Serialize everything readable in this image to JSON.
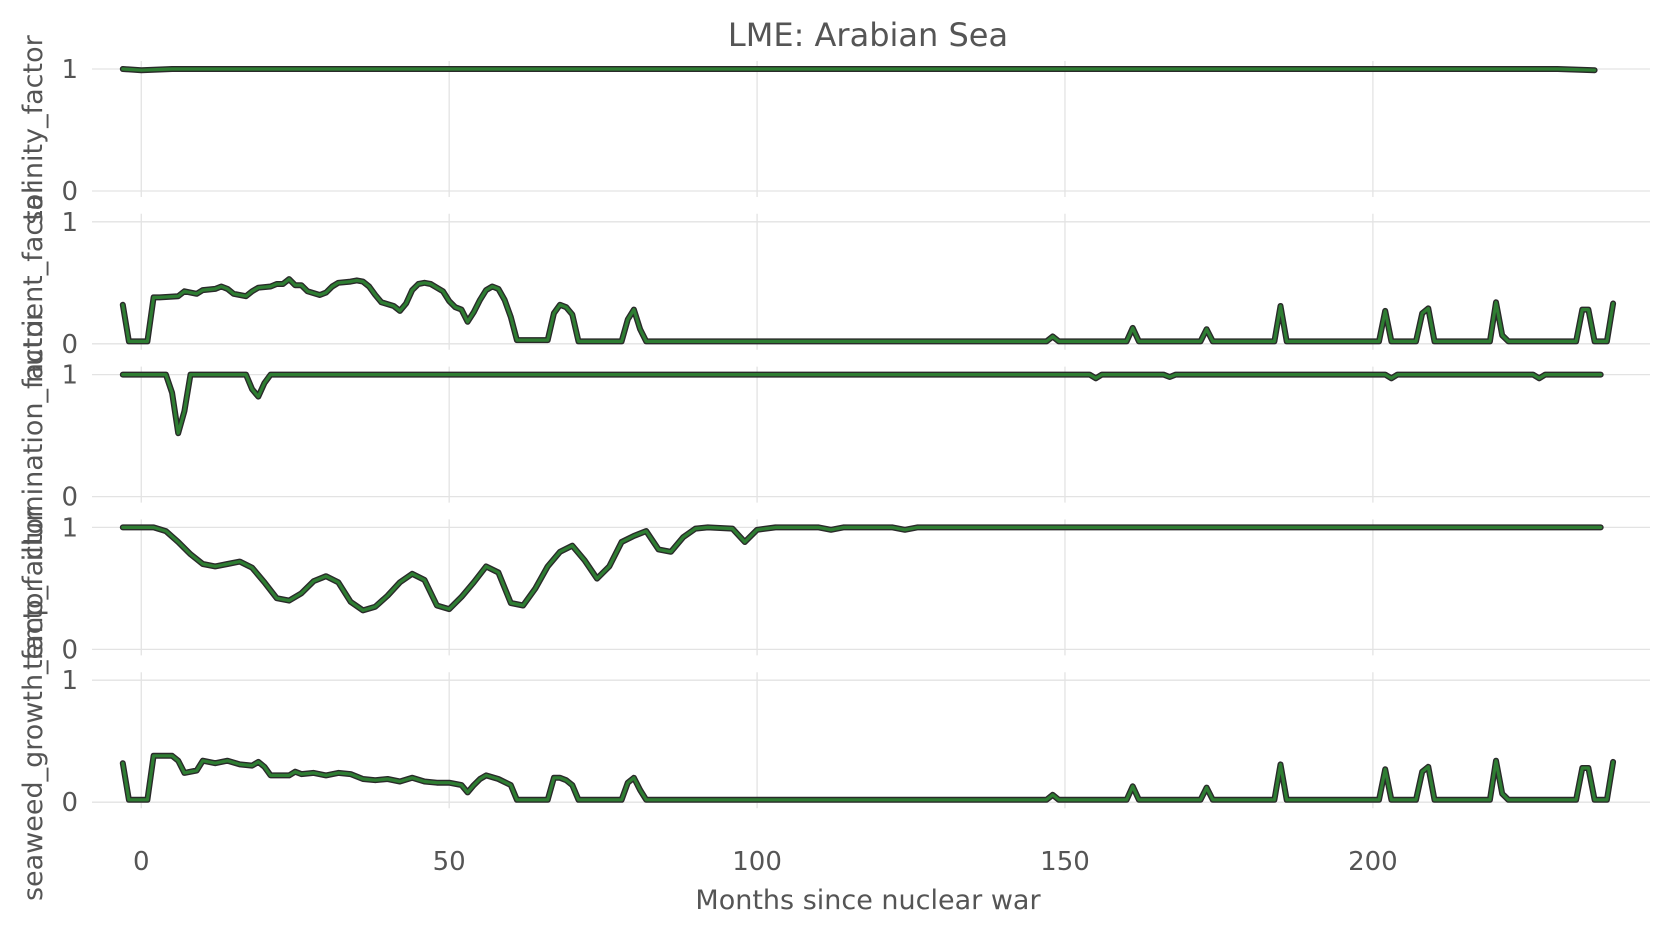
{
  "chart_data": {
    "type": "line",
    "title": "LME: Arabian Sea",
    "xlabel": "Months since nuclear war",
    "xlim": [
      -8,
      245
    ],
    "x_ticks": [
      0,
      50,
      100,
      150,
      200
    ],
    "y_ticks": [
      0,
      1
    ],
    "line_color": "#2e7d32",
    "outline_color": "#2a2a2a",
    "grid": true,
    "panels": [
      {
        "ylabel": "salinity_factor",
        "ylim": [
          0,
          1
        ],
        "points": [
          [
            -3,
            1.0
          ],
          [
            0,
            0.99
          ],
          [
            5,
            1.0
          ],
          [
            230,
            1.0
          ],
          [
            236,
            0.99
          ]
        ]
      },
      {
        "ylabel": "nutrient_factor",
        "ylim": [
          0,
          1
        ],
        "points": [
          [
            -3,
            0.32
          ],
          [
            -2,
            0.02
          ],
          [
            1,
            0.02
          ],
          [
            2,
            0.38
          ],
          [
            3,
            0.38
          ],
          [
            6,
            0.39
          ],
          [
            7,
            0.43
          ],
          [
            9,
            0.41
          ],
          [
            10,
            0.44
          ],
          [
            12,
            0.45
          ],
          [
            13,
            0.47
          ],
          [
            14,
            0.45
          ],
          [
            15,
            0.41
          ],
          [
            17,
            0.39
          ],
          [
            18,
            0.43
          ],
          [
            19,
            0.46
          ],
          [
            21,
            0.47
          ],
          [
            22,
            0.49
          ],
          [
            23,
            0.49
          ],
          [
            24,
            0.53
          ],
          [
            25,
            0.48
          ],
          [
            26,
            0.48
          ],
          [
            27,
            0.43
          ],
          [
            29,
            0.4
          ],
          [
            30,
            0.42
          ],
          [
            31,
            0.47
          ],
          [
            32,
            0.5
          ],
          [
            34,
            0.51
          ],
          [
            35,
            0.52
          ],
          [
            36,
            0.51
          ],
          [
            37,
            0.47
          ],
          [
            38,
            0.4
          ],
          [
            39,
            0.34
          ],
          [
            41,
            0.31
          ],
          [
            42,
            0.27
          ],
          [
            43,
            0.33
          ],
          [
            44,
            0.44
          ],
          [
            45,
            0.49
          ],
          [
            46,
            0.5
          ],
          [
            47,
            0.49
          ],
          [
            48,
            0.46
          ],
          [
            49,
            0.43
          ],
          [
            50,
            0.35
          ],
          [
            51,
            0.3
          ],
          [
            52,
            0.28
          ],
          [
            53,
            0.18
          ],
          [
            54,
            0.26
          ],
          [
            55,
            0.36
          ],
          [
            56,
            0.44
          ],
          [
            57,
            0.47
          ],
          [
            58,
            0.45
          ],
          [
            59,
            0.36
          ],
          [
            60,
            0.22
          ],
          [
            61,
            0.03
          ],
          [
            66,
            0.03
          ],
          [
            67,
            0.25
          ],
          [
            68,
            0.32
          ],
          [
            69,
            0.3
          ],
          [
            70,
            0.24
          ],
          [
            71,
            0.02
          ],
          [
            78,
            0.02
          ],
          [
            79,
            0.2
          ],
          [
            80,
            0.28
          ],
          [
            81,
            0.12
          ],
          [
            82,
            0.02
          ],
          [
            147,
            0.02
          ],
          [
            148,
            0.06
          ],
          [
            149,
            0.02
          ],
          [
            160,
            0.02
          ],
          [
            161,
            0.13
          ],
          [
            162,
            0.02
          ],
          [
            172,
            0.02
          ],
          [
            173,
            0.12
          ],
          [
            174,
            0.02
          ],
          [
            184,
            0.02
          ],
          [
            185,
            0.31
          ],
          [
            186,
            0.02
          ],
          [
            201,
            0.02
          ],
          [
            202,
            0.27
          ],
          [
            203,
            0.02
          ],
          [
            207,
            0.02
          ],
          [
            208,
            0.25
          ],
          [
            209,
            0.29
          ],
          [
            210,
            0.02
          ],
          [
            219,
            0.02
          ],
          [
            220,
            0.34
          ],
          [
            221,
            0.07
          ],
          [
            222,
            0.02
          ],
          [
            233,
            0.02
          ],
          [
            234,
            0.28
          ],
          [
            235,
            0.28
          ],
          [
            236,
            0.02
          ],
          [
            238,
            0.02
          ],
          [
            239,
            0.33
          ]
        ]
      },
      {
        "ylabel": "illumination_factor",
        "ylim": [
          0,
          1
        ],
        "points": [
          [
            -3,
            1.0
          ],
          [
            4,
            1.0
          ],
          [
            5,
            0.85
          ],
          [
            6,
            0.52
          ],
          [
            7,
            0.7
          ],
          [
            8,
            1.0
          ],
          [
            17,
            1.0
          ],
          [
            18,
            0.88
          ],
          [
            19,
            0.82
          ],
          [
            20,
            0.93
          ],
          [
            21,
            1.0
          ],
          [
            154,
            1.0
          ],
          [
            155,
            0.97
          ],
          [
            156,
            1.0
          ],
          [
            166,
            1.0
          ],
          [
            167,
            0.98
          ],
          [
            168,
            1.0
          ],
          [
            202,
            1.0
          ],
          [
            203,
            0.97
          ],
          [
            204,
            1.0
          ],
          [
            226,
            1.0
          ],
          [
            227,
            0.97
          ],
          [
            228,
            1.0
          ],
          [
            237,
            1.0
          ]
        ]
      },
      {
        "ylabel": "temp_factor",
        "ylim": [
          0,
          1
        ],
        "points": [
          [
            -3,
            1.0
          ],
          [
            2,
            1.0
          ],
          [
            4,
            0.97
          ],
          [
            6,
            0.88
          ],
          [
            8,
            0.78
          ],
          [
            10,
            0.7
          ],
          [
            12,
            0.68
          ],
          [
            14,
            0.7
          ],
          [
            16,
            0.72
          ],
          [
            18,
            0.67
          ],
          [
            20,
            0.55
          ],
          [
            22,
            0.42
          ],
          [
            24,
            0.4
          ],
          [
            26,
            0.46
          ],
          [
            28,
            0.56
          ],
          [
            30,
            0.6
          ],
          [
            32,
            0.55
          ],
          [
            34,
            0.39
          ],
          [
            36,
            0.32
          ],
          [
            38,
            0.35
          ],
          [
            40,
            0.44
          ],
          [
            42,
            0.55
          ],
          [
            44,
            0.62
          ],
          [
            46,
            0.57
          ],
          [
            48,
            0.36
          ],
          [
            50,
            0.33
          ],
          [
            52,
            0.43
          ],
          [
            54,
            0.55
          ],
          [
            56,
            0.68
          ],
          [
            58,
            0.63
          ],
          [
            60,
            0.38
          ],
          [
            62,
            0.36
          ],
          [
            64,
            0.5
          ],
          [
            66,
            0.68
          ],
          [
            68,
            0.8
          ],
          [
            70,
            0.85
          ],
          [
            72,
            0.73
          ],
          [
            74,
            0.58
          ],
          [
            76,
            0.68
          ],
          [
            78,
            0.88
          ],
          [
            80,
            0.93
          ],
          [
            82,
            0.97
          ],
          [
            84,
            0.82
          ],
          [
            86,
            0.8
          ],
          [
            88,
            0.92
          ],
          [
            90,
            0.99
          ],
          [
            92,
            1.0
          ],
          [
            96,
            0.99
          ],
          [
            98,
            0.88
          ],
          [
            100,
            0.98
          ],
          [
            103,
            1.0
          ],
          [
            110,
            1.0
          ],
          [
            112,
            0.98
          ],
          [
            114,
            1.0
          ],
          [
            122,
            1.0
          ],
          [
            124,
            0.98
          ],
          [
            126,
            1.0
          ],
          [
            237,
            1.0
          ]
        ]
      },
      {
        "ylabel": "seaweed_growth_factor",
        "ylim": [
          0,
          1
        ],
        "points": [
          [
            -3,
            0.32
          ],
          [
            -2,
            0.02
          ],
          [
            1,
            0.02
          ],
          [
            2,
            0.38
          ],
          [
            5,
            0.38
          ],
          [
            6,
            0.34
          ],
          [
            7,
            0.24
          ],
          [
            9,
            0.26
          ],
          [
            10,
            0.34
          ],
          [
            12,
            0.32
          ],
          [
            14,
            0.34
          ],
          [
            16,
            0.31
          ],
          [
            18,
            0.3
          ],
          [
            19,
            0.33
          ],
          [
            20,
            0.29
          ],
          [
            21,
            0.22
          ],
          [
            24,
            0.22
          ],
          [
            25,
            0.25
          ],
          [
            26,
            0.23
          ],
          [
            28,
            0.24
          ],
          [
            30,
            0.22
          ],
          [
            32,
            0.24
          ],
          [
            34,
            0.23
          ],
          [
            36,
            0.19
          ],
          [
            38,
            0.18
          ],
          [
            40,
            0.19
          ],
          [
            42,
            0.17
          ],
          [
            44,
            0.2
          ],
          [
            46,
            0.17
          ],
          [
            48,
            0.16
          ],
          [
            50,
            0.16
          ],
          [
            52,
            0.14
          ],
          [
            53,
            0.08
          ],
          [
            54,
            0.14
          ],
          [
            55,
            0.19
          ],
          [
            56,
            0.22
          ],
          [
            58,
            0.19
          ],
          [
            60,
            0.14
          ],
          [
            61,
            0.02
          ],
          [
            66,
            0.02
          ],
          [
            67,
            0.2
          ],
          [
            68,
            0.2
          ],
          [
            69,
            0.18
          ],
          [
            70,
            0.14
          ],
          [
            71,
            0.02
          ],
          [
            78,
            0.02
          ],
          [
            79,
            0.16
          ],
          [
            80,
            0.2
          ],
          [
            81,
            0.1
          ],
          [
            82,
            0.02
          ],
          [
            147,
            0.02
          ],
          [
            148,
            0.06
          ],
          [
            149,
            0.02
          ],
          [
            160,
            0.02
          ],
          [
            161,
            0.13
          ],
          [
            162,
            0.02
          ],
          [
            172,
            0.02
          ],
          [
            173,
            0.12
          ],
          [
            174,
            0.02
          ],
          [
            184,
            0.02
          ],
          [
            185,
            0.31
          ],
          [
            186,
            0.02
          ],
          [
            201,
            0.02
          ],
          [
            202,
            0.27
          ],
          [
            203,
            0.02
          ],
          [
            207,
            0.02
          ],
          [
            208,
            0.25
          ],
          [
            209,
            0.29
          ],
          [
            210,
            0.02
          ],
          [
            219,
            0.02
          ],
          [
            220,
            0.34
          ],
          [
            221,
            0.07
          ],
          [
            222,
            0.02
          ],
          [
            233,
            0.02
          ],
          [
            234,
            0.28
          ],
          [
            235,
            0.28
          ],
          [
            236,
            0.02
          ],
          [
            238,
            0.02
          ],
          [
            239,
            0.33
          ]
        ]
      }
    ]
  }
}
